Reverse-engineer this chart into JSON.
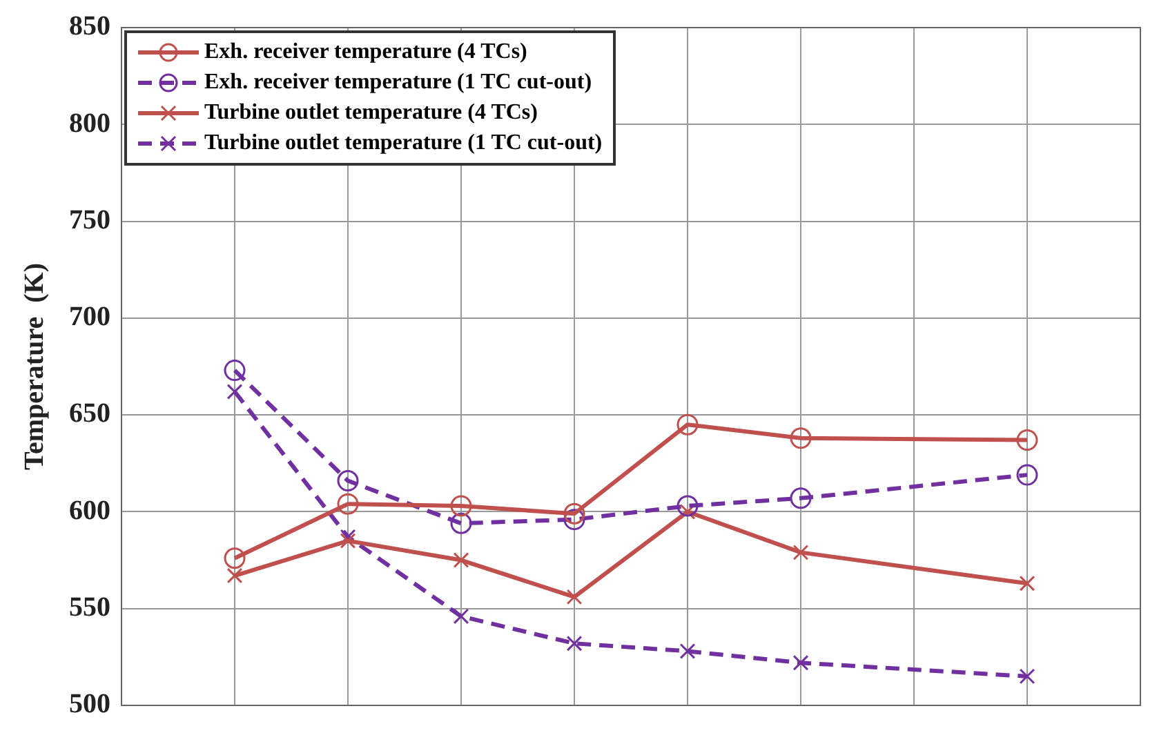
{
  "chart_data": {
    "type": "line",
    "ylabel": "Temperature  (K)",
    "categories": [
      null,
      null,
      null,
      null,
      null,
      null,
      null,
      null,
      null,
      null
    ],
    "ylim": [
      500,
      850
    ],
    "yticks": [
      500,
      550,
      600,
      650,
      700,
      750,
      800,
      850
    ],
    "grid": true,
    "legend": "top left",
    "tick_labels": "y",
    "series": [
      {
        "name": "Exh. receiver temperature (4 TCs)",
        "color": "#c0504d",
        "marker": "circle",
        "line_style": "solid",
        "values": [
          null,
          576,
          604,
          603,
          599,
          645,
          638,
          null,
          637,
          null
        ]
      },
      {
        "name": "Exh. receiver temperature (1 TC cut-out)",
        "color": "#7030a0",
        "marker": "circle",
        "line_style": "dashed",
        "values": [
          null,
          673,
          616,
          594,
          596,
          603,
          607,
          null,
          619,
          null
        ]
      },
      {
        "name": "Turbine outlet temperature (4 TCs)",
        "color": "#c0504d",
        "marker": "cross",
        "line_style": "solid",
        "values": [
          null,
          567,
          585,
          575,
          556,
          600,
          579,
          null,
          563,
          null
        ]
      },
      {
        "name": "Turbine outlet temperature (1 TC cut-out)",
        "color": "#7030a0",
        "marker": "cross",
        "line_style": "dashed",
        "values": [
          null,
          662,
          587,
          546,
          532,
          528,
          522,
          null,
          515,
          null
        ]
      }
    ]
  }
}
